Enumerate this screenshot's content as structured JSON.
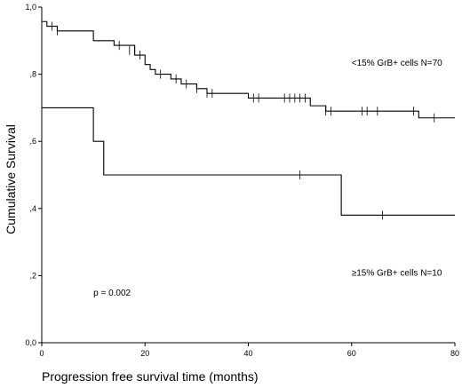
{
  "chart_data": {
    "type": "line",
    "subtype": "kaplan-meier-step",
    "title": "",
    "xlabel": "Progression free survival time (months)",
    "ylabel": "Cumulative Survival",
    "xlim": [
      0,
      80
    ],
    "ylim": [
      0,
      1
    ],
    "x_ticks": [
      {
        "value": 0,
        "label": "0"
      },
      {
        "value": 20,
        "label": "20"
      },
      {
        "value": 40,
        "label": "40"
      },
      {
        "value": 60,
        "label": "60"
      },
      {
        "value": 80,
        "label": "80"
      }
    ],
    "y_ticks": [
      {
        "value": 0.0,
        "label": "0,0"
      },
      {
        "value": 0.2,
        "label": ",2"
      },
      {
        "value": 0.4,
        "label": ",4"
      },
      {
        "value": 0.6,
        "label": ",6"
      },
      {
        "value": 0.8,
        "label": ",8"
      },
      {
        "value": 1.0,
        "label": "1,0"
      }
    ],
    "grid": false,
    "legend": "none",
    "series": [
      {
        "name": "<15% GrB+ cells N=70",
        "steps": [
          [
            0,
            0.957
          ],
          [
            1,
            0.943
          ],
          [
            3,
            0.929
          ],
          [
            10,
            0.9
          ],
          [
            14,
            0.886
          ],
          [
            18,
            0.857
          ],
          [
            20,
            0.829
          ],
          [
            21,
            0.814
          ],
          [
            22,
            0.8
          ],
          [
            25,
            0.786
          ],
          [
            27,
            0.771
          ],
          [
            30,
            0.757
          ],
          [
            32,
            0.743
          ],
          [
            40,
            0.729
          ],
          [
            52,
            0.706
          ],
          [
            55,
            0.69
          ],
          [
            73,
            0.67
          ],
          [
            80,
            0.67
          ]
        ],
        "censored": [
          [
            2,
            0.943
          ],
          [
            3,
            0.929
          ],
          [
            15,
            0.886
          ],
          [
            17,
            0.871
          ],
          [
            18,
            0.871
          ],
          [
            19,
            0.857
          ],
          [
            23,
            0.8
          ],
          [
            26,
            0.786
          ],
          [
            28,
            0.771
          ],
          [
            30,
            0.757
          ],
          [
            32,
            0.743
          ],
          [
            33,
            0.743
          ],
          [
            41,
            0.729
          ],
          [
            42,
            0.729
          ],
          [
            47,
            0.729
          ],
          [
            48,
            0.729
          ],
          [
            49,
            0.729
          ],
          [
            50,
            0.729
          ],
          [
            51,
            0.729
          ],
          [
            55,
            0.69
          ],
          [
            56,
            0.69
          ],
          [
            62,
            0.69
          ],
          [
            63,
            0.69
          ],
          [
            65,
            0.69
          ],
          [
            72,
            0.69
          ],
          [
            76,
            0.67
          ]
        ]
      },
      {
        "name": "≥15% GrB+ cells N=10",
        "steps": [
          [
            0,
            0.7
          ],
          [
            10,
            0.6
          ],
          [
            12,
            0.5
          ],
          [
            58,
            0.38
          ],
          [
            80,
            0.38
          ]
        ],
        "censored": [
          [
            50,
            0.5
          ],
          [
            66,
            0.38
          ]
        ]
      }
    ],
    "annotations": [
      {
        "text": "<15% GrB+ cells N=70",
        "x": 60,
        "y": 0.825,
        "anchor": "start"
      },
      {
        "text": "≥15% GrB+ cells N=10",
        "x": 60,
        "y": 0.2,
        "anchor": "start"
      },
      {
        "text": "p = 0.002",
        "x": 10,
        "y": 0.14,
        "anchor": "start"
      }
    ]
  }
}
